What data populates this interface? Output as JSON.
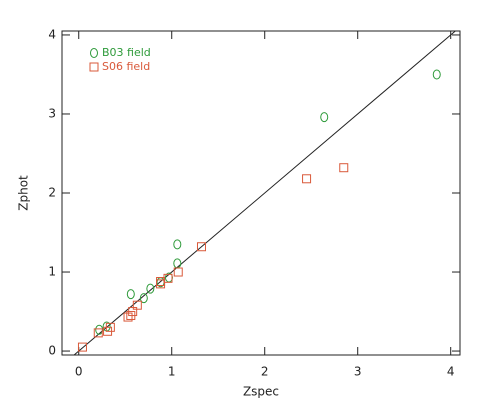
{
  "chart_data": {
    "type": "scatter",
    "x_label": "Zspec",
    "y_label": "Zphot",
    "xlim": [
      -0.18,
      4.1
    ],
    "ylim": [
      -0.05,
      4.05
    ],
    "xticks": [
      0,
      1,
      2,
      3,
      4
    ],
    "yticks": [
      0,
      1,
      2,
      3,
      4
    ],
    "legend": "upper left",
    "series": [
      {
        "name": "B03 field",
        "color": "#2e9a3a",
        "marker": "circle",
        "x": [
          0.22,
          0.3,
          0.56,
          0.7,
          0.77,
          0.88,
          0.97,
          1.06,
          1.06,
          2.64,
          3.85
        ],
        "values": [
          0.27,
          0.31,
          0.72,
          0.67,
          0.79,
          0.87,
          0.93,
          1.35,
          1.11,
          2.96,
          3.5
        ]
      },
      {
        "name": "S06 field",
        "color": "#d9593a",
        "marker": "square",
        "x": [
          0.04,
          0.21,
          0.31,
          0.34,
          0.53,
          0.56,
          0.58,
          0.63,
          0.88,
          0.88,
          0.96,
          1.07,
          1.32,
          2.45,
          2.85
        ],
        "values": [
          0.05,
          0.23,
          0.25,
          0.3,
          0.43,
          0.45,
          0.5,
          0.58,
          0.85,
          0.88,
          0.92,
          1.0,
          1.32,
          2.18,
          2.32
        ]
      }
    ]
  }
}
